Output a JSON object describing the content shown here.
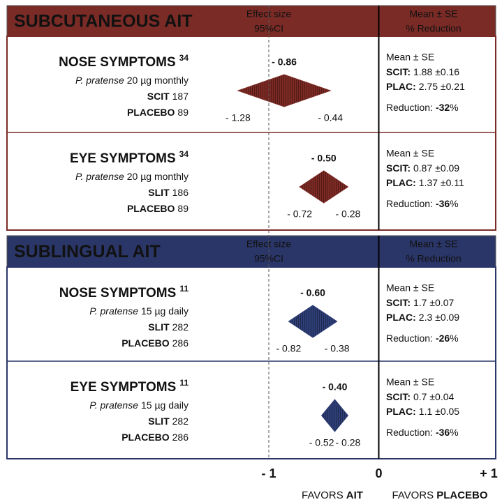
{
  "chart_data": {
    "type": "forest",
    "xlim": [
      -1,
      1
    ],
    "xticks": [
      {
        "value": -1,
        "label": "- 1"
      },
      0,
      {
        "value": 1,
        "label": "+ 1"
      }
    ],
    "favors_left": [
      "FAVORS",
      "AIT"
    ],
    "favors_right": [
      "FAVORS",
      "PLACEBO"
    ],
    "groups": [
      {
        "title": "SUBCUTANEOUS AIT",
        "color": "#7a2b26",
        "diamond_color": "#7d2a24",
        "effect_header": [
          "Effect size",
          "95%CI"
        ],
        "stats_header": [
          "Mean ± SE",
          "% Reduction"
        ],
        "studies": [
          {
            "name": "NOSE SYMPTOMS",
            "ref": "34",
            "drug": "P. pratense",
            "dose": "20 µg monthly",
            "arm1": "SCIT",
            "n1": 187,
            "arm2": "PLACEBO",
            "n2": 89,
            "estimate": -0.86,
            "estimate_label": "- 0.86",
            "lower": -1.28,
            "lower_label": "- 1.28",
            "upper": -0.44,
            "upper_label": "- 0.44",
            "stats_title": "Mean ± SE",
            "stat1_label": "SCIT:",
            "stat1": "1.88 ±0.16",
            "stat2_label": "PLAC:",
            "stat2": "2.75 ±0.21",
            "reduction_label": "Reduction:",
            "reduction": -32,
            "reduction_unit": "%"
          },
          {
            "name": "EYE SYMPTOMS",
            "ref": "34",
            "drug": "P. pratense",
            "dose": "20 µg monthly",
            "arm1": "SLIT",
            "n1": 186,
            "arm2": "PLACEBO",
            "n2": 89,
            "estimate": -0.5,
            "estimate_label": "- 0.50",
            "lower": -0.72,
            "lower_label": "- 0.72",
            "upper": -0.28,
            "upper_label": "- 0.28",
            "stats_title": "Mean ± SE",
            "stat1_label": "SCIT:",
            "stat1": "0.87 ±0.09",
            "stat2_label": "PLAC:",
            "stat2": "1.37 ±0.11",
            "reduction_label": "Reduction:",
            "reduction": -36,
            "reduction_unit": "%"
          }
        ]
      },
      {
        "title": "SUBLINGUAL AIT",
        "color": "#2b3668",
        "diamond_color": "#2e3f78",
        "effect_header": [
          "Effect size",
          "95%CI"
        ],
        "stats_header": [
          "Mean ± SE",
          "% Reduction"
        ],
        "studies": [
          {
            "name": "NOSE SYMPTOMS",
            "ref": "11",
            "drug": "P. pratense",
            "dose": "15 µg daily",
            "arm1": "SLIT",
            "n1": 282,
            "arm2": "PLACEBO",
            "n2": 286,
            "estimate": -0.6,
            "estimate_label": "- 0.60",
            "lower": -0.82,
            "lower_label": "- 0.82",
            "upper": -0.38,
            "upper_label": "- 0.38",
            "stats_title": "Mean ± SE",
            "stat1_label": "SCIT:",
            "stat1": "1.7 ±0.07",
            "stat2_label": "PLAC:",
            "stat2": "2.3 ±0.09",
            "reduction_label": "Reduction:",
            "reduction": -26,
            "reduction_unit": "%"
          },
          {
            "name": "EYE SYMPTOMS",
            "ref": "11",
            "drug": "P. pratense",
            "dose": "15 µg daily",
            "arm1": "SLIT",
            "n1": 282,
            "arm2": "PLACEBO",
            "n2": 286,
            "estimate": -0.4,
            "estimate_label": "- 0.40",
            "lower": -0.52,
            "lower_label": "- 0.52",
            "upper": -0.28,
            "upper_label": "- 0.28",
            "stats_title": "Mean ± SE",
            "stat1_label": "SCIT:",
            "stat1": "0.7 ±0.04",
            "stat2_label": "PLAC:",
            "stat2": "1.1 ±0.05",
            "reduction_label": "Reduction:",
            "reduction": -36,
            "reduction_unit": "%"
          }
        ]
      }
    ]
  }
}
